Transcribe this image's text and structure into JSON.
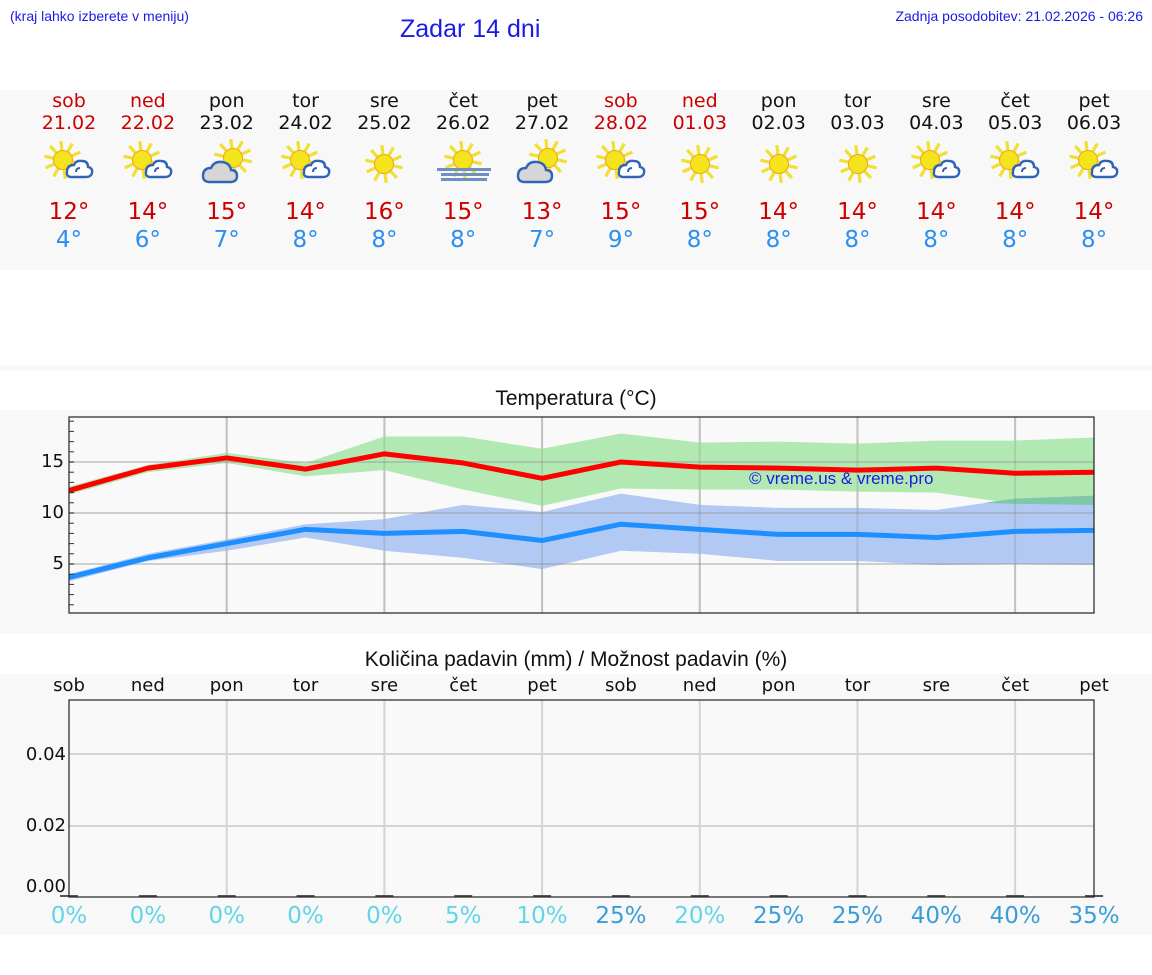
{
  "header": {
    "location_hint": "(kraj lahko izberete v meniju)",
    "title": "Zadar 14 dni",
    "last_update": "Zadnja posodobitev: 21.02.2026 - 06:26"
  },
  "forecast": {
    "days": [
      {
        "name": "sob",
        "date": "21.02",
        "weekend": true,
        "icon": "sun-small-cloud-icon",
        "max": "12°",
        "min": "4°"
      },
      {
        "name": "ned",
        "date": "22.02",
        "weekend": true,
        "icon": "sun-small-cloud-icon",
        "max": "14°",
        "min": "6°"
      },
      {
        "name": "pon",
        "date": "23.02",
        "weekend": false,
        "icon": "sun-big-cloud-icon",
        "max": "15°",
        "min": "7°"
      },
      {
        "name": "tor",
        "date": "24.02",
        "weekend": false,
        "icon": "sun-small-cloud-icon",
        "max": "14°",
        "min": "8°"
      },
      {
        "name": "sre",
        "date": "25.02",
        "weekend": false,
        "icon": "sun-icon",
        "max": "16°",
        "min": "8°"
      },
      {
        "name": "čet",
        "date": "26.02",
        "weekend": false,
        "icon": "sun-fog-icon",
        "max": "15°",
        "min": "8°"
      },
      {
        "name": "pet",
        "date": "27.02",
        "weekend": false,
        "icon": "sun-big-cloud-icon",
        "max": "13°",
        "min": "7°"
      },
      {
        "name": "sob",
        "date": "28.02",
        "weekend": true,
        "icon": "sun-small-cloud-icon",
        "max": "15°",
        "min": "9°"
      },
      {
        "name": "ned",
        "date": "01.03",
        "weekend": true,
        "icon": "sun-icon",
        "max": "15°",
        "min": "8°"
      },
      {
        "name": "pon",
        "date": "02.03",
        "weekend": false,
        "icon": "sun-icon",
        "max": "14°",
        "min": "8°"
      },
      {
        "name": "tor",
        "date": "03.03",
        "weekend": false,
        "icon": "sun-icon",
        "max": "14°",
        "min": "8°"
      },
      {
        "name": "sre",
        "date": "04.03",
        "weekend": false,
        "icon": "sun-small-cloud-icon",
        "max": "14°",
        "min": "8°"
      },
      {
        "name": "čet",
        "date": "05.03",
        "weekend": false,
        "icon": "sun-small-cloud-icon",
        "max": "14°",
        "min": "8°"
      },
      {
        "name": "pet",
        "date": "06.03",
        "weekend": false,
        "icon": "sun-small-cloud-icon",
        "max": "14°",
        "min": "8°"
      }
    ]
  },
  "colors": {
    "weekend_text": "#cc0000",
    "weekday_text": "#111111",
    "max_line": "#ff0000",
    "min_line": "#1e8fff",
    "max_band": "#aee8ae",
    "min_band": "#aec6f2",
    "overlap_band": "#7ec8a8",
    "pct_low": "#5fd6e6",
    "pct_high": "#3a9ed6"
  },
  "temperature_chart": {
    "title": "Temperatura (°C)",
    "watermark": "© vreme.us & vreme.pro",
    "yticks": [
      "15",
      "10",
      "5"
    ]
  },
  "precip_chart": {
    "title": "Količina padavin (mm) / Možnost padavin (%)",
    "day_labels": [
      "sob",
      "ned",
      "pon",
      "tor",
      "sre",
      "čet",
      "pet",
      "sob",
      "ned",
      "pon",
      "tor",
      "sre",
      "čet",
      "pet"
    ],
    "yticks": [
      "0.04",
      "0.02",
      "0.00"
    ],
    "probabilities": [
      "0%",
      "0%",
      "0%",
      "0%",
      "0%",
      "5%",
      "10%",
      "25%",
      "20%",
      "25%",
      "25%",
      "40%",
      "40%",
      "35%"
    ]
  },
  "chart_data": [
    {
      "type": "line",
      "title": "Temperatura (°C)",
      "xlabel": "",
      "ylabel": "°C",
      "ylim": [
        0.2,
        19.4
      ],
      "grid": true,
      "categories": [
        "21.02",
        "22.02",
        "23.02",
        "24.02",
        "25.02",
        "26.02",
        "27.02",
        "28.02",
        "01.03",
        "02.03",
        "03.03",
        "04.03",
        "05.03",
        "06.03"
      ],
      "series": [
        {
          "name": "Max temperature",
          "color": "#ff0000",
          "values": [
            12.2,
            14.4,
            15.4,
            14.3,
            15.8,
            14.9,
            13.4,
            15.0,
            14.5,
            14.4,
            14.2,
            14.4,
            13.9,
            14.0
          ]
        },
        {
          "name": "Max range upper",
          "color": "#aee8ae",
          "values": [
            12.6,
            14.7,
            15.9,
            14.9,
            17.5,
            17.5,
            16.3,
            17.8,
            16.9,
            17.0,
            16.8,
            17.1,
            17.1,
            17.4
          ]
        },
        {
          "name": "Max range lower",
          "color": "#aee8ae",
          "values": [
            11.8,
            14.0,
            14.9,
            13.6,
            14.2,
            12.3,
            10.7,
            12.4,
            12.3,
            12.3,
            12.1,
            12.0,
            10.9,
            10.8
          ]
        },
        {
          "name": "Min temperature",
          "color": "#1e8fff",
          "values": [
            3.7,
            5.6,
            7.0,
            8.4,
            8.0,
            8.2,
            7.3,
            8.9,
            8.4,
            7.9,
            7.9,
            7.6,
            8.2,
            8.3
          ]
        },
        {
          "name": "Min range upper",
          "color": "#aec6f2",
          "values": [
            4.0,
            6.0,
            7.4,
            8.9,
            9.4,
            10.8,
            10.1,
            11.9,
            10.8,
            10.5,
            10.5,
            10.3,
            11.4,
            11.7
          ]
        },
        {
          "name": "Min range lower",
          "color": "#aec6f2",
          "values": [
            3.3,
            5.3,
            6.3,
            7.6,
            6.3,
            5.6,
            4.5,
            6.3,
            6.0,
            5.3,
            5.3,
            4.9,
            5.0,
            4.9
          ]
        }
      ],
      "yticks": [
        5,
        10,
        15
      ],
      "annotations": [
        "© vreme.us & vreme.pro"
      ]
    },
    {
      "type": "bar",
      "title": "Količina padavin (mm) / Možnost padavin (%)",
      "xlabel": "",
      "ylabel": "mm",
      "ylim": [
        0,
        0.055
      ],
      "grid": true,
      "categories": [
        "sob",
        "ned",
        "pon",
        "tor",
        "sre",
        "čet",
        "pet",
        "sob",
        "ned",
        "pon",
        "tor",
        "sre",
        "čet",
        "pet"
      ],
      "series": [
        {
          "name": "Količina padavin (mm)",
          "values": [
            0,
            0,
            0,
            0,
            0,
            0,
            0,
            0,
            0,
            0,
            0,
            0,
            0,
            0
          ]
        },
        {
          "name": "Možnost padavin (%)",
          "values": [
            0,
            0,
            0,
            0,
            0,
            5,
            10,
            25,
            20,
            25,
            25,
            40,
            40,
            35
          ]
        }
      ],
      "yticks": [
        0.0,
        0.02,
        0.04
      ]
    }
  ]
}
